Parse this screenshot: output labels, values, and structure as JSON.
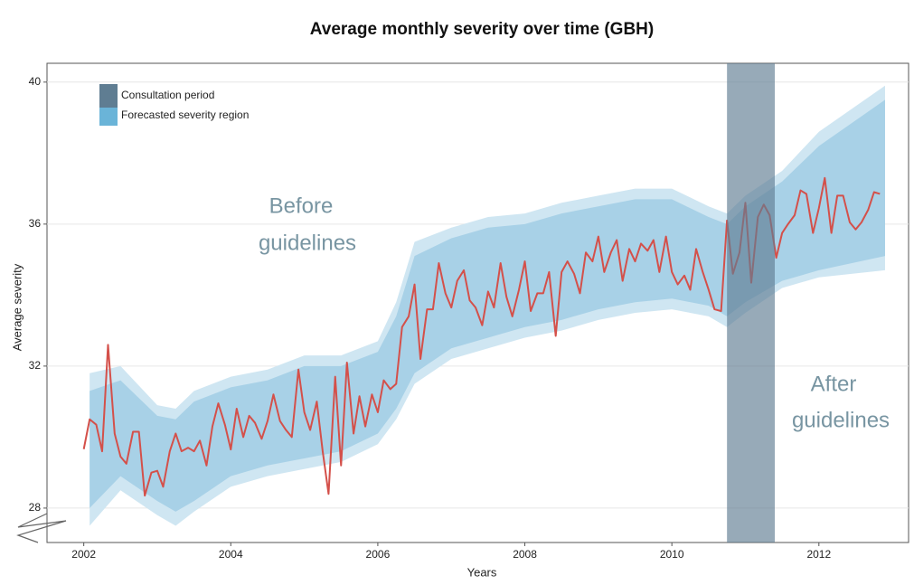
{
  "chart_data": {
    "type": "line",
    "title": "Average monthly severity over time (GBH)",
    "xlabel": "Years",
    "ylabel": "Average severity",
    "xlim": [
      2001.5,
      2013.22
    ],
    "ylim": [
      27.03,
      40.53
    ],
    "xticks": [
      2002,
      2004,
      2006,
      2008,
      2010,
      2012
    ],
    "yticks": [
      28,
      32,
      36,
      40
    ],
    "grid": true,
    "legend": "top-left",
    "before_label": [
      "Before",
      "guidelines"
    ],
    "after_label": [
      "After",
      "guidelines"
    ],
    "consultation": {
      "name": "Consultation period",
      "color": "#5f7d92",
      "x": [
        2010.75,
        2011.4
      ]
    },
    "forecast": {
      "name": "Forecasted severity region",
      "color": "#6ab4d8",
      "outer_color": "#cfe6f2",
      "inner_color": "#a8d1e7",
      "x": [
        2002.08,
        2002.5,
        2003.0,
        2003.25,
        2003.5,
        2004.0,
        2004.5,
        2005.0,
        2005.5,
        2006.0,
        2006.25,
        2006.5,
        2007.0,
        2007.5,
        2008.0,
        2008.5,
        2009.0,
        2009.5,
        2010.0,
        2010.5,
        2010.75,
        2011.0,
        2011.5,
        2012.0,
        2012.9
      ],
      "lo95": [
        27.5,
        28.5,
        27.8,
        27.5,
        27.9,
        28.6,
        28.9,
        29.1,
        29.3,
        29.8,
        30.5,
        31.5,
        32.2,
        32.5,
        32.8,
        33.0,
        33.3,
        33.5,
        33.6,
        33.4,
        33.1,
        33.5,
        34.2,
        34.5,
        34.7
      ],
      "lo80": [
        28.0,
        28.9,
        28.2,
        27.9,
        28.2,
        28.9,
        29.2,
        29.4,
        29.6,
        30.1,
        30.8,
        31.8,
        32.5,
        32.8,
        33.1,
        33.3,
        33.6,
        33.8,
        33.9,
        33.7,
        33.4,
        33.8,
        34.4,
        34.7,
        35.1
      ],
      "hi80": [
        31.3,
        31.6,
        30.6,
        30.5,
        31.0,
        31.4,
        31.6,
        32.0,
        32.0,
        32.4,
        33.4,
        35.1,
        35.6,
        35.9,
        36.0,
        36.3,
        36.5,
        36.7,
        36.7,
        36.2,
        36.0,
        36.5,
        37.2,
        38.2,
        39.5
      ],
      "hi95": [
        31.8,
        32.0,
        30.9,
        30.8,
        31.3,
        31.7,
        31.9,
        32.3,
        32.3,
        32.7,
        33.8,
        35.5,
        35.9,
        36.2,
        36.3,
        36.6,
        36.8,
        37.0,
        37.0,
        36.5,
        36.3,
        36.8,
        37.5,
        38.6,
        39.9
      ]
    },
    "series": [
      {
        "color": "#d4504a",
        "x": [
          2002.0,
          2002.08,
          2002.17,
          2002.25,
          2002.33,
          2002.42,
          2002.5,
          2002.58,
          2002.67,
          2002.75,
          2002.83,
          2002.92,
          2003.0,
          2003.08,
          2003.17,
          2003.25,
          2003.33,
          2003.42,
          2003.5,
          2003.58,
          2003.67,
          2003.75,
          2003.83,
          2003.92,
          2004.0,
          2004.08,
          2004.17,
          2004.25,
          2004.33,
          2004.42,
          2004.5,
          2004.58,
          2004.67,
          2004.75,
          2004.83,
          2004.92,
          2005.0,
          2005.08,
          2005.17,
          2005.25,
          2005.33,
          2005.42,
          2005.5,
          2005.58,
          2005.67,
          2005.75,
          2005.83,
          2005.92,
          2006.0,
          2006.08,
          2006.17,
          2006.25,
          2006.33,
          2006.42,
          2006.5,
          2006.58,
          2006.67,
          2006.75,
          2006.83,
          2006.92,
          2007.0,
          2007.08,
          2007.17,
          2007.25,
          2007.33,
          2007.42,
          2007.5,
          2007.58,
          2007.67,
          2007.75,
          2007.83,
          2007.92,
          2008.0,
          2008.08,
          2008.17,
          2008.25,
          2008.33,
          2008.42,
          2008.5,
          2008.58,
          2008.67,
          2008.75,
          2008.83,
          2008.92,
          2009.0,
          2009.08,
          2009.17,
          2009.25,
          2009.33,
          2009.42,
          2009.5,
          2009.58,
          2009.67,
          2009.75,
          2009.83,
          2009.92,
          2010.0,
          2010.08,
          2010.17,
          2010.25,
          2010.33,
          2010.42,
          2010.5,
          2010.58,
          2010.67,
          2010.75,
          2010.83,
          2010.92,
          2011.0,
          2011.08,
          2011.17,
          2011.25,
          2011.33,
          2011.42,
          2011.5,
          2011.58,
          2011.67,
          2011.75,
          2011.83,
          2011.92,
          2012.0,
          2012.08,
          2012.17,
          2012.25,
          2012.33,
          2012.42,
          2012.5,
          2012.58,
          2012.67,
          2012.75,
          2012.83
        ],
        "values": [
          29.66,
          30.5,
          30.35,
          29.6,
          32.6,
          30.1,
          29.45,
          29.25,
          30.15,
          30.15,
          28.35,
          29.0,
          29.05,
          28.6,
          29.6,
          30.1,
          29.6,
          29.7,
          29.6,
          29.9,
          29.2,
          30.3,
          30.95,
          30.35,
          29.65,
          30.8,
          30.0,
          30.6,
          30.4,
          29.95,
          30.45,
          31.2,
          30.45,
          30.2,
          30.0,
          31.9,
          30.7,
          30.2,
          31.0,
          29.6,
          28.4,
          31.7,
          29.2,
          32.1,
          30.1,
          31.15,
          30.3,
          31.2,
          30.7,
          31.6,
          31.35,
          31.5,
          33.1,
          33.4,
          34.3,
          32.2,
          33.6,
          33.6,
          34.9,
          34.05,
          33.65,
          34.4,
          34.7,
          33.85,
          33.65,
          33.15,
          34.1,
          33.65,
          34.9,
          33.95,
          33.4,
          34.15,
          34.95,
          33.55,
          34.05,
          34.05,
          34.65,
          32.85,
          34.65,
          34.95,
          34.6,
          34.05,
          35.2,
          34.95,
          35.65,
          34.65,
          35.2,
          35.55,
          34.4,
          35.3,
          34.95,
          35.45,
          35.25,
          35.55,
          34.65,
          35.65,
          34.65,
          34.3,
          34.55,
          34.15,
          35.3,
          34.65,
          34.15,
          33.6,
          33.55,
          36.1,
          34.6,
          35.2,
          36.6,
          34.35,
          36.2,
          36.55,
          36.25,
          35.05,
          35.75,
          36.0,
          36.25,
          36.95,
          36.85,
          35.75,
          36.45,
          37.3,
          35.75,
          36.8,
          36.8,
          36.05,
          35.85,
          36.05,
          36.4,
          36.9,
          36.85
        ]
      }
    ]
  }
}
